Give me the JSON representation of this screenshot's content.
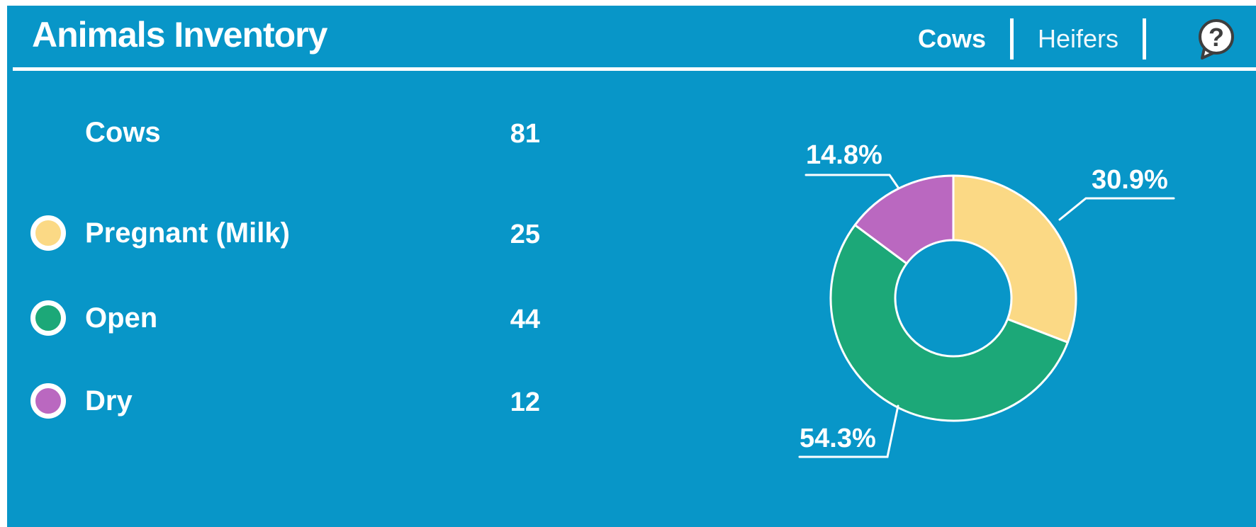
{
  "header": {
    "title": "Animals Inventory",
    "tabs": [
      {
        "label": "Cows",
        "active": true
      },
      {
        "label": "Heifers",
        "active": false
      }
    ],
    "help_icon": "question-mark-speech-bubble"
  },
  "legend": {
    "rows": [
      {
        "label": "Cows",
        "value": "81",
        "bullet": null
      },
      {
        "label": "Pregnant (Milk)",
        "value": "25",
        "bullet": "pregnant-milk"
      },
      {
        "label": "Open",
        "value": "44",
        "bullet": "open"
      },
      {
        "label": "Dry",
        "value": "12",
        "bullet": "dry"
      }
    ]
  },
  "chart_data": {
    "type": "pie",
    "donut": true,
    "direction": "clockwise",
    "start_angle_deg": 0,
    "total": 81,
    "total_label": "Cows",
    "legend_position": "left",
    "slices": [
      {
        "label": "Pregnant (Milk)",
        "value": 25,
        "percent": 30.9,
        "percent_label": "30.9%",
        "color": "#FBD985"
      },
      {
        "label": "Open",
        "value": 44,
        "percent": 54.3,
        "percent_label": "54.3%",
        "color": "#1CA878"
      },
      {
        "label": "Dry",
        "value": 12,
        "percent": 14.8,
        "percent_label": "14.8%",
        "color": "#BA68C0"
      }
    ]
  },
  "colors": {
    "panel_background": "#0896C8",
    "text": "#FFFFFF",
    "divider": "#FFFFFF",
    "pregnant_milk": "#FBD985",
    "open": "#1CA878",
    "dry": "#BA68C0",
    "help_icon_outline": "#3E3E3E"
  }
}
